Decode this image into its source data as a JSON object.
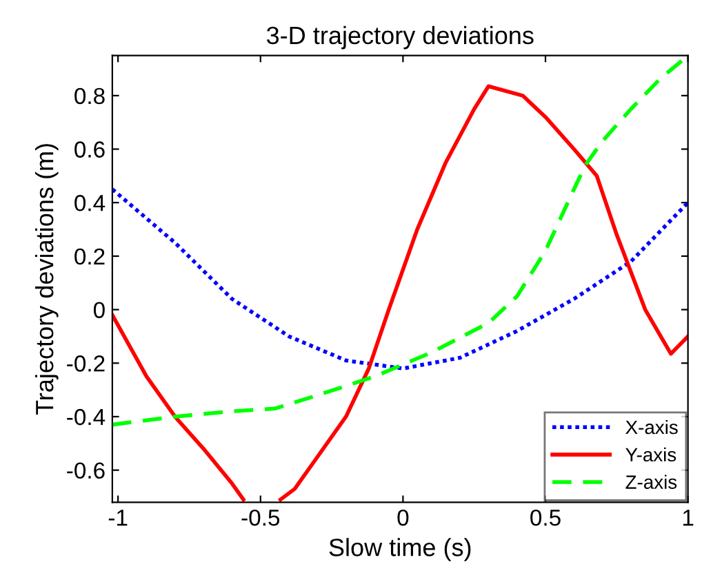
{
  "chart_data": {
    "type": "line",
    "title": "3-D trajectory deviations",
    "xlabel": "Slow time (s)",
    "ylabel": "Trajectory deviations (m)",
    "xlim": [
      -1.02,
      1.0
    ],
    "ylim": [
      -0.72,
      0.95
    ],
    "xticks": [
      -1,
      -0.5,
      0,
      0.5,
      1
    ],
    "yticks": [
      -0.6,
      -0.4,
      -0.2,
      0,
      0.2,
      0.4,
      0.6,
      0.8
    ],
    "grid": false,
    "legend": "bottom right",
    "series": [
      {
        "name": "X-axis",
        "color": "#0000ff",
        "line_style": "dotted",
        "x": [
          -1.02,
          -0.8,
          -0.6,
          -0.4,
          -0.2,
          0,
          0.2,
          0.4,
          0.6,
          0.8,
          1.0
        ],
        "values": [
          0.45,
          0.25,
          0.04,
          -0.1,
          -0.19,
          -0.22,
          -0.18,
          -0.08,
          0.04,
          0.18,
          0.4
        ]
      },
      {
        "name": "Y-axis",
        "color": "#ff0000",
        "line_style": "solid",
        "x": [
          -1.02,
          -0.9,
          -0.8,
          -0.7,
          -0.6,
          -0.56,
          -0.5,
          -0.43,
          -0.38,
          -0.3,
          -0.2,
          -0.12,
          -0.05,
          0.05,
          0.15,
          0.25,
          0.3,
          0.42,
          0.5,
          0.6,
          0.68,
          0.75,
          0.85,
          0.94,
          1.0
        ],
        "values": [
          -0.02,
          -0.25,
          -0.4,
          -0.52,
          -0.65,
          -0.71,
          null,
          -0.71,
          -0.67,
          -0.55,
          -0.4,
          -0.22,
          0.0,
          0.3,
          0.55,
          0.75,
          0.835,
          0.8,
          0.72,
          0.6,
          0.5,
          0.28,
          0.0,
          -0.165,
          -0.1
        ]
      },
      {
        "name": "Z-axis",
        "color": "#00ff00",
        "line_style": "dashed",
        "x": [
          -1.02,
          -0.8,
          -0.6,
          -0.45,
          -0.3,
          -0.1,
          0.1,
          0.3,
          0.4,
          0.5,
          0.6,
          0.64,
          0.7,
          0.8,
          0.9,
          1.0
        ],
        "values": [
          -0.43,
          -0.4,
          -0.38,
          -0.37,
          -0.32,
          -0.25,
          -0.16,
          -0.05,
          0.05,
          0.22,
          0.45,
          0.54,
          0.63,
          0.75,
          0.86,
          0.95
        ]
      }
    ]
  }
}
